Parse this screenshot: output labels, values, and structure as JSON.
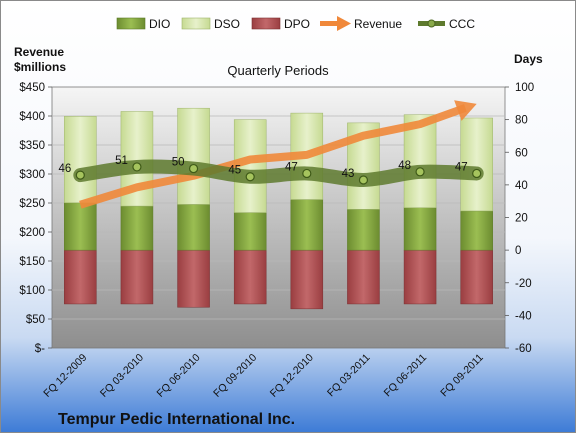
{
  "chart_data": {
    "type": "bar",
    "title": "Quarterly Periods",
    "company": "Tempur Pedic International Inc.",
    "left_axis_label": [
      "Revenue",
      "$millions"
    ],
    "right_axis_label": "Days",
    "categories": [
      "FQ 12-2009",
      "FQ 03-2010",
      "FQ 06-2010",
      "FQ 09-2010",
      "FQ 12-2010",
      "FQ 03-2011",
      "FQ 06-2011",
      "FQ 09-2011"
    ],
    "left_ticks": [
      "$-",
      "$50",
      "$100",
      "$150",
      "$200",
      "$250",
      "$300",
      "$350",
      "$400",
      "$450"
    ],
    "right_ticks": [
      "-60",
      "-40",
      "-20",
      "0",
      "20",
      "40",
      "60",
      "80",
      "100"
    ],
    "ylim_days": [
      -60,
      100
    ],
    "ylim_revenue": [
      0,
      450
    ],
    "legend_position": "top",
    "series": [
      {
        "name": "DIO",
        "kind": "stacked-bar-positive",
        "color": "#7A9C3A",
        "values": [
          29,
          27,
          28,
          23,
          31,
          25,
          26,
          24
        ]
      },
      {
        "name": "DSO",
        "kind": "stacked-bar-positive",
        "color": "#D2E3A6",
        "values": [
          53,
          58,
          59,
          57,
          53,
          53,
          57,
          57
        ]
      },
      {
        "name": "DPO",
        "kind": "bar-negative",
        "color": "#A84B4D",
        "values": [
          -33,
          -33,
          -35,
          -33,
          -36,
          -33,
          -33,
          -33
        ]
      },
      {
        "name": "Revenue",
        "kind": "line-arrow",
        "color": "#F0883A",
        "values": [
          247,
          277,
          297,
          325,
          333,
          366,
          386,
          421
        ]
      },
      {
        "name": "CCC",
        "kind": "line-labeled",
        "color": "#5E7A2E",
        "values": [
          46,
          51,
          50,
          45,
          47,
          43,
          48,
          47
        ]
      }
    ]
  }
}
